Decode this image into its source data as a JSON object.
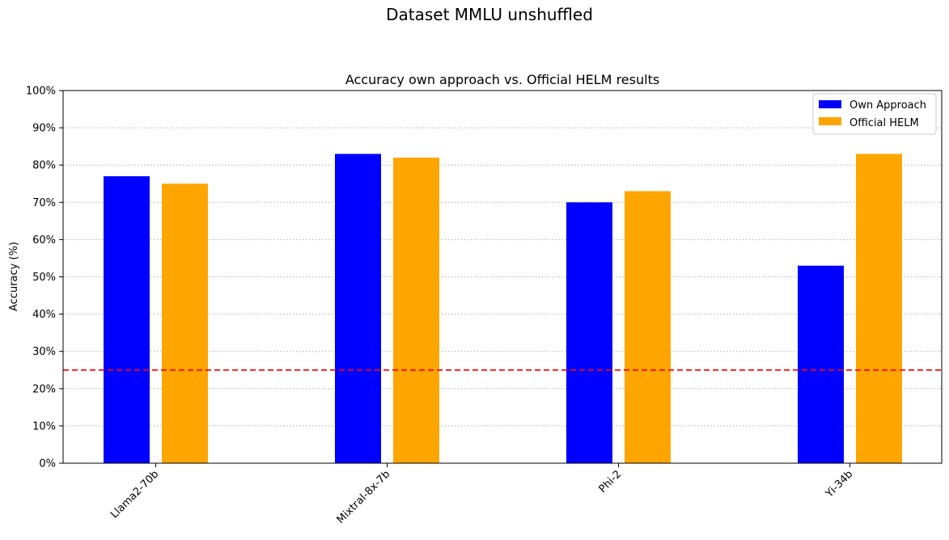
{
  "chart_data": {
    "type": "bar",
    "suptitle": "Dataset MMLU unshuffled",
    "title": "Accuracy own approach vs. Official HELM results",
    "xlabel": "",
    "ylabel": "Accuracy (%)",
    "categories": [
      "Llama2-70b",
      "Mixtral-8x-7b",
      "Phi-2",
      "Yi-34b"
    ],
    "series": [
      {
        "name": "Own Approach",
        "color": "#0000ff",
        "values": [
          77,
          83,
          70,
          53
        ]
      },
      {
        "name": "Official HELM",
        "color": "#ffa500",
        "values": [
          75,
          82,
          73,
          83
        ]
      }
    ],
    "ylim": [
      0,
      100
    ],
    "yticks": [
      "0%",
      "10%",
      "20%",
      "30%",
      "40%",
      "50%",
      "60%",
      "70%",
      "80%",
      "90%",
      "100%"
    ],
    "reference_line": {
      "value": 25,
      "color": "#ff0000",
      "style": "dashed"
    },
    "grid": "horizontal dotted",
    "legend_position": "top-right"
  }
}
